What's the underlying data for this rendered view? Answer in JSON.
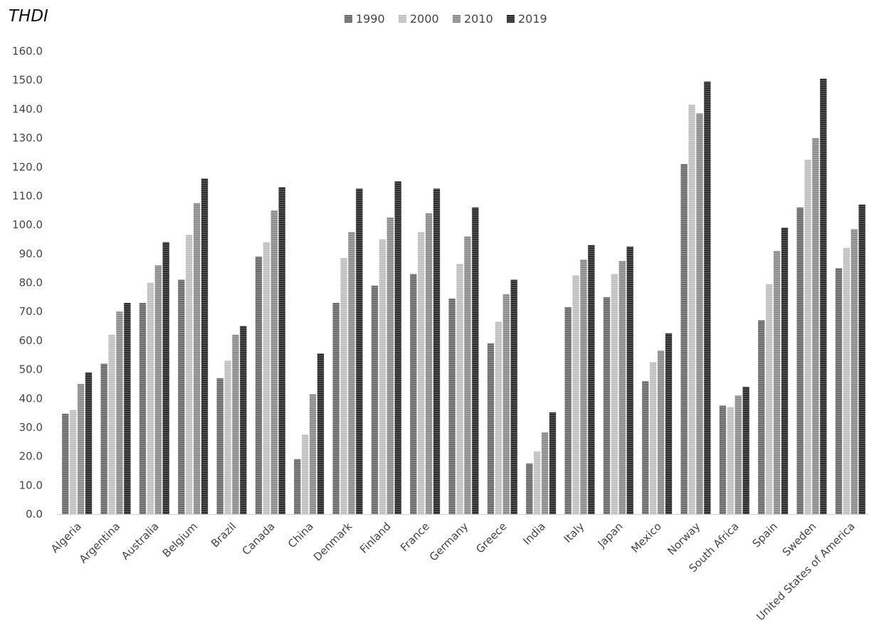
{
  "chart_data": {
    "type": "bar",
    "title": "THDI",
    "xlabel": "",
    "ylabel": "",
    "ylim": [
      0,
      160
    ],
    "yticks": [
      "0.0",
      "10.0",
      "20.0",
      "30.0",
      "40.0",
      "50.0",
      "60.0",
      "70.0",
      "80.0",
      "90.0",
      "100.0",
      "110.0",
      "120.0",
      "130.0",
      "140.0",
      "150.0",
      "160.0"
    ],
    "grid": false,
    "legend_position": "top-center",
    "categories": [
      "Algeria",
      "Argentina",
      "Australia",
      "Belgium",
      "Brazil",
      "Canada",
      "China",
      "Denmark",
      "Finland",
      "France",
      "Germany",
      "Greece",
      "India",
      "Italy",
      "Japan",
      "Mexico",
      "Norway",
      "South Africa",
      "Spain",
      "Sweden",
      "United States of America"
    ],
    "series": [
      {
        "name": "1990",
        "color": "#6b6b6b",
        "values": [
          34.7,
          52.0,
          73.0,
          81.0,
          47.0,
          89.0,
          19.0,
          73.0,
          79.0,
          83.0,
          74.5,
          59.0,
          17.5,
          71.5,
          75.0,
          46.0,
          121.0,
          37.5,
          67.0,
          106.0,
          85.0
        ]
      },
      {
        "name": "2000",
        "color": "#c0c0c0",
        "values": [
          36.0,
          62.0,
          80.0,
          96.5,
          53.0,
          94.0,
          27.5,
          88.5,
          95.0,
          97.5,
          86.5,
          66.5,
          21.7,
          82.5,
          83.0,
          52.5,
          141.5,
          37.0,
          79.5,
          122.5,
          92.0
        ]
      },
      {
        "name": "2010",
        "color": "#8c8c8c",
        "values": [
          45.0,
          70.0,
          86.0,
          107.5,
          62.0,
          105.0,
          41.5,
          97.5,
          102.5,
          104.0,
          96.0,
          76.0,
          28.3,
          88.0,
          87.5,
          56.5,
          138.5,
          41.0,
          91.0,
          130.0,
          98.5
        ]
      },
      {
        "name": "2019",
        "color": "#2a2a2a",
        "values": [
          49.0,
          73.0,
          94.0,
          116.0,
          65.0,
          113.0,
          55.5,
          112.5,
          115.0,
          112.5,
          106.0,
          81.0,
          35.2,
          93.0,
          92.5,
          62.5,
          149.5,
          44.0,
          99.0,
          150.5,
          107.0
        ]
      }
    ]
  }
}
